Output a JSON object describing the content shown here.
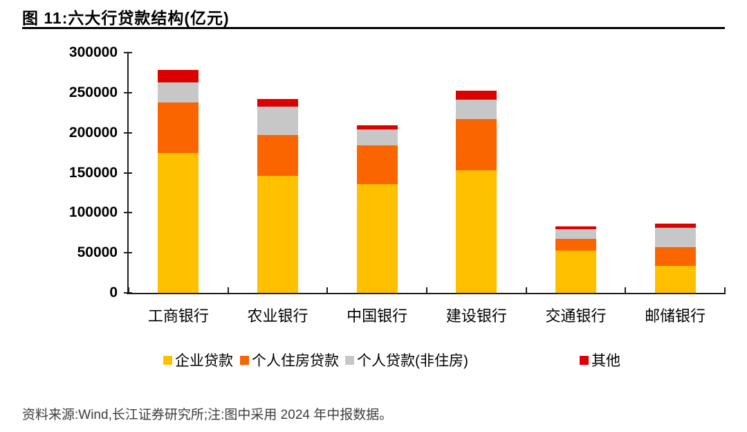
{
  "header": {
    "title": "图 11:六大行贷款结构(亿元)"
  },
  "footer": {
    "text": "资料来源:Wind,长江证券研究所;注:图中采用 2024 年中报数据。"
  },
  "legend": {
    "items": [
      {
        "label": "企业贷款",
        "color": "#FFC000"
      },
      {
        "label": "个人住房贷款",
        "color": "#FA6500"
      },
      {
        "label": "个人贷款(非住房)",
        "color": "#C7C7C7"
      },
      {
        "label": "其他",
        "color": "#DC0000"
      }
    ]
  },
  "chart_data": {
    "type": "bar",
    "stacked": true,
    "title": "六大行贷款结构(亿元)",
    "categories": [
      "工商银行",
      "农业银行",
      "中国银行",
      "建设银行",
      "交通银行",
      "邮储银行"
    ],
    "series": [
      {
        "name": "企业贷款",
        "color": "#FFC000",
        "values": [
          175000,
          146000,
          135500,
          153000,
          53000,
          34000
        ]
      },
      {
        "name": "个人住房贷款",
        "color": "#FA6500",
        "values": [
          62500,
          51000,
          49000,
          64000,
          14500,
          23000
        ]
      },
      {
        "name": "个人贷款(非住房)",
        "color": "#C7C7C7",
        "values": [
          25500,
          35500,
          19500,
          24500,
          12000,
          24000
        ]
      },
      {
        "name": "其他",
        "color": "#DC0000",
        "values": [
          15000,
          10000,
          5000,
          11000,
          3500,
          5500
        ]
      }
    ],
    "totals": [
      278000,
      242500,
      209000,
      252500,
      83000,
      86500
    ],
    "xlabel": "",
    "ylabel": "",
    "ylim": [
      0,
      300000
    ],
    "ytick_interval": 50000,
    "ytick_labels": [
      "0",
      "50000",
      "100000",
      "150000",
      "200000",
      "250000",
      "300000"
    ],
    "grid": false,
    "legend_position": "bottom",
    "axis_color": "#1c1c1c"
  }
}
